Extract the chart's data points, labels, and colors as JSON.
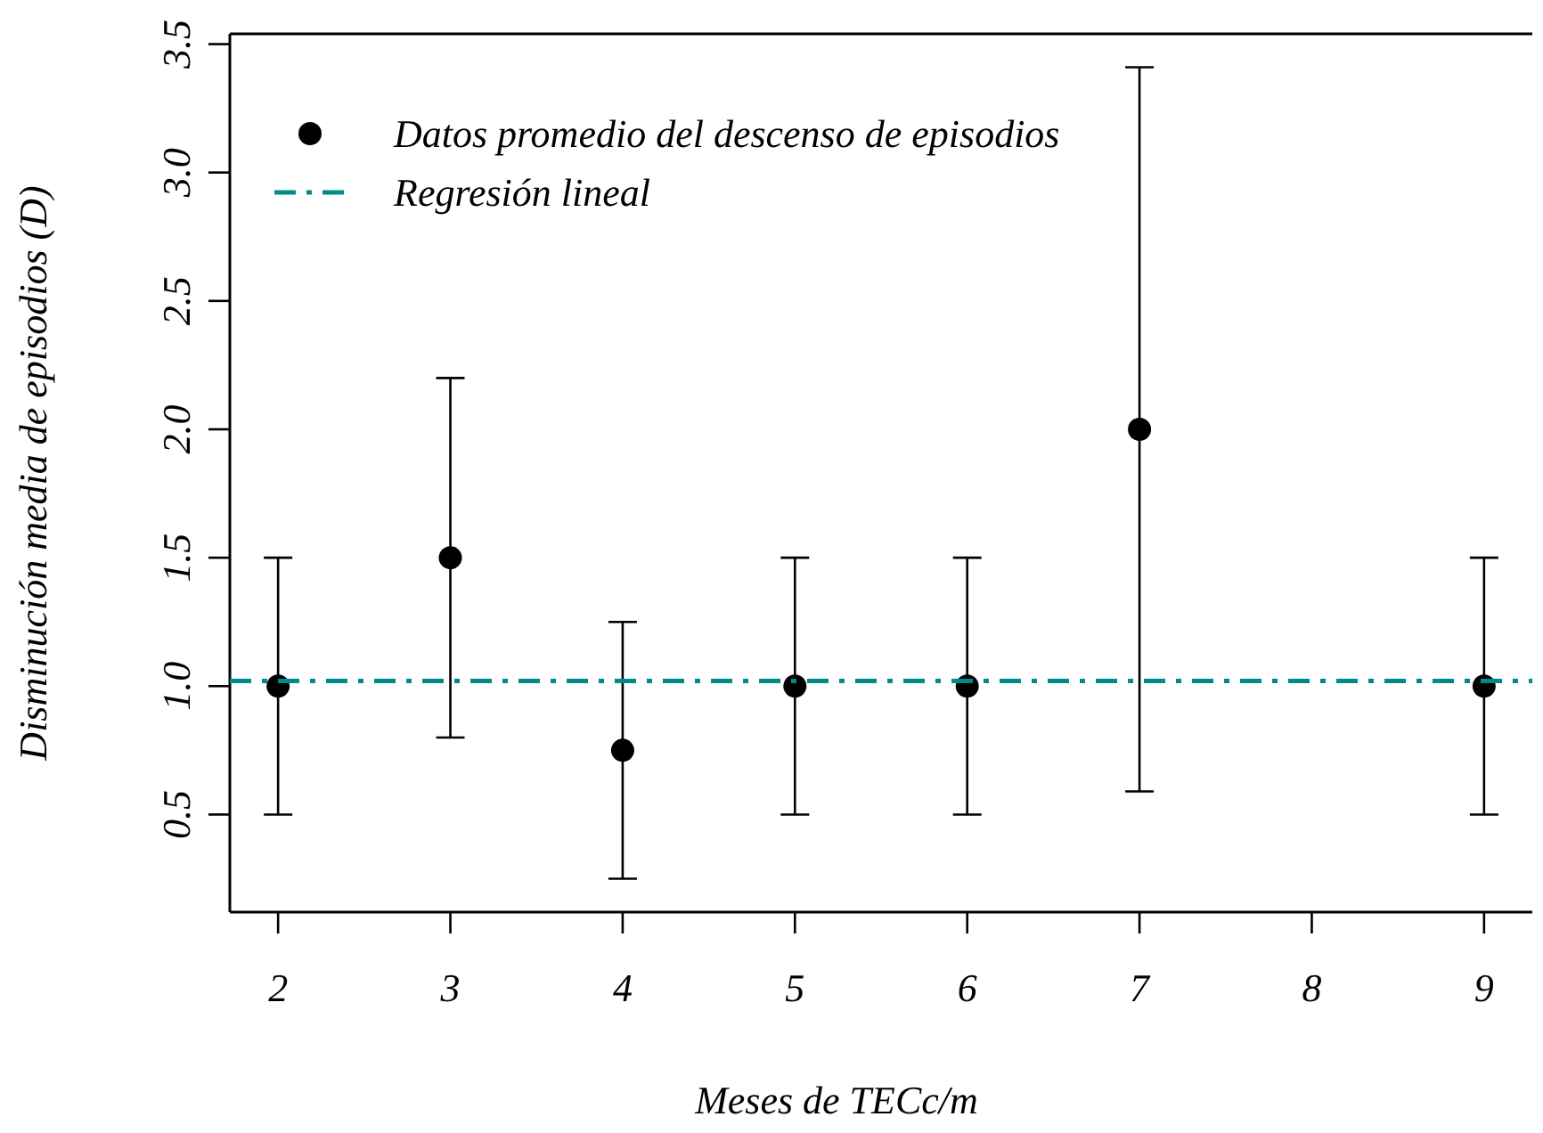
{
  "chart_data": {
    "type": "scatter",
    "xlabel": "Meses de TECc/m",
    "ylabel": "Disminución media de episodios (D)",
    "x": [
      2,
      3,
      4,
      5,
      6,
      7,
      9
    ],
    "series": [
      {
        "name": "Datos promedio del descenso de episodios",
        "color": "#000000",
        "values": [
          1,
          1.5,
          0.75,
          1,
          1,
          2,
          1
        ],
        "errors": [
          [
            0.5,
            1.5
          ],
          [
            0.8,
            2.2
          ],
          [
            0.25,
            1.25
          ],
          [
            0.5,
            1.5
          ],
          [
            0.5,
            1.5
          ],
          [
            0.59,
            3.41
          ],
          [
            0.5,
            1.5
          ]
        ],
        "marker": "circle"
      },
      {
        "name": "Regresión lineal",
        "type": "line",
        "color": "#008b8b",
        "x": [
          1.72,
          9.28
        ],
        "values": [
          1.02,
          1.02
        ],
        "line_style": "dashed"
      }
    ],
    "xlim": [
      1.72,
      9.28
    ],
    "xticks": [
      2,
      3,
      4,
      5,
      6,
      7,
      8,
      9
    ],
    "ylim": [
      0.12,
      3.54
    ],
    "yticks": [
      {
        "value": 0.5,
        "label": "0.5"
      },
      {
        "value": 1,
        "label": "1.0"
      },
      {
        "value": 1.5,
        "label": "1.5"
      },
      {
        "value": 2,
        "label": "2.0"
      },
      {
        "value": 2.5,
        "label": "2.5"
      },
      {
        "value": 3,
        "label": "3.0"
      },
      {
        "value": 3.5,
        "label": "3.5"
      }
    ],
    "grid": false,
    "legend": "top left"
  }
}
